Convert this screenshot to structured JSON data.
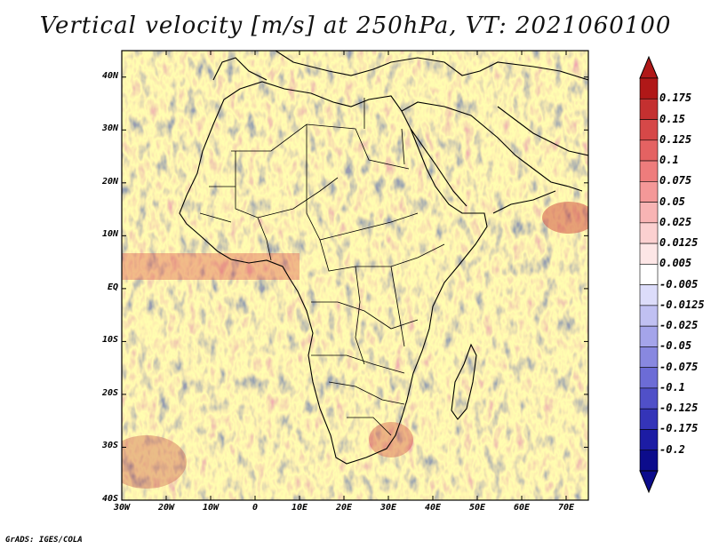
{
  "title": "Vertical velocity [m/s] at 250hPa, VT: 2021060100",
  "credit": "GrADS: IGES/COLA",
  "map": {
    "projection": "latlon",
    "lon_range": [
      -30,
      75
    ],
    "lat_range": [
      -40,
      45
    ],
    "lat_labels": [
      "40N",
      "30N",
      "20N",
      "10N",
      "EQ",
      "10S",
      "20S",
      "30S",
      "40S"
    ],
    "lat_values": [
      40,
      30,
      20,
      10,
      0,
      -10,
      -20,
      -30,
      -40
    ],
    "lon_labels": [
      "30W",
      "20W",
      "10W",
      "0",
      "10E",
      "20E",
      "30E",
      "40E",
      "50E",
      "60E",
      "70E"
    ],
    "lon_values": [
      -30,
      -20,
      -10,
      0,
      10,
      20,
      30,
      40,
      50,
      60,
      70
    ]
  },
  "colorbar": {
    "labels": [
      "0.175",
      "0.15",
      "0.125",
      "0.1",
      "0.075",
      "0.05",
      "0.025",
      "0.0125",
      "0.005",
      "-0.005",
      "-0.0125",
      "-0.025",
      "-0.05",
      "-0.075",
      "-0.1",
      "-0.125",
      "-0.175",
      "-0.2"
    ],
    "colors": [
      "#b01818",
      "#c43030",
      "#d64848",
      "#e46262",
      "#ee7c7c",
      "#f49898",
      "#f8b4b4",
      "#fbd0d0",
      "#fde6e6",
      "#ffffff",
      "#dcdcfa",
      "#c0c0f2",
      "#a4a4ea",
      "#8888e0",
      "#6c6cd6",
      "#5050c8",
      "#3434b8",
      "#1c1ca4",
      "#0c0c8c"
    ],
    "colors_note": "19 color boxes from top (red) to bottom (blue); triangles at the ends"
  }
}
